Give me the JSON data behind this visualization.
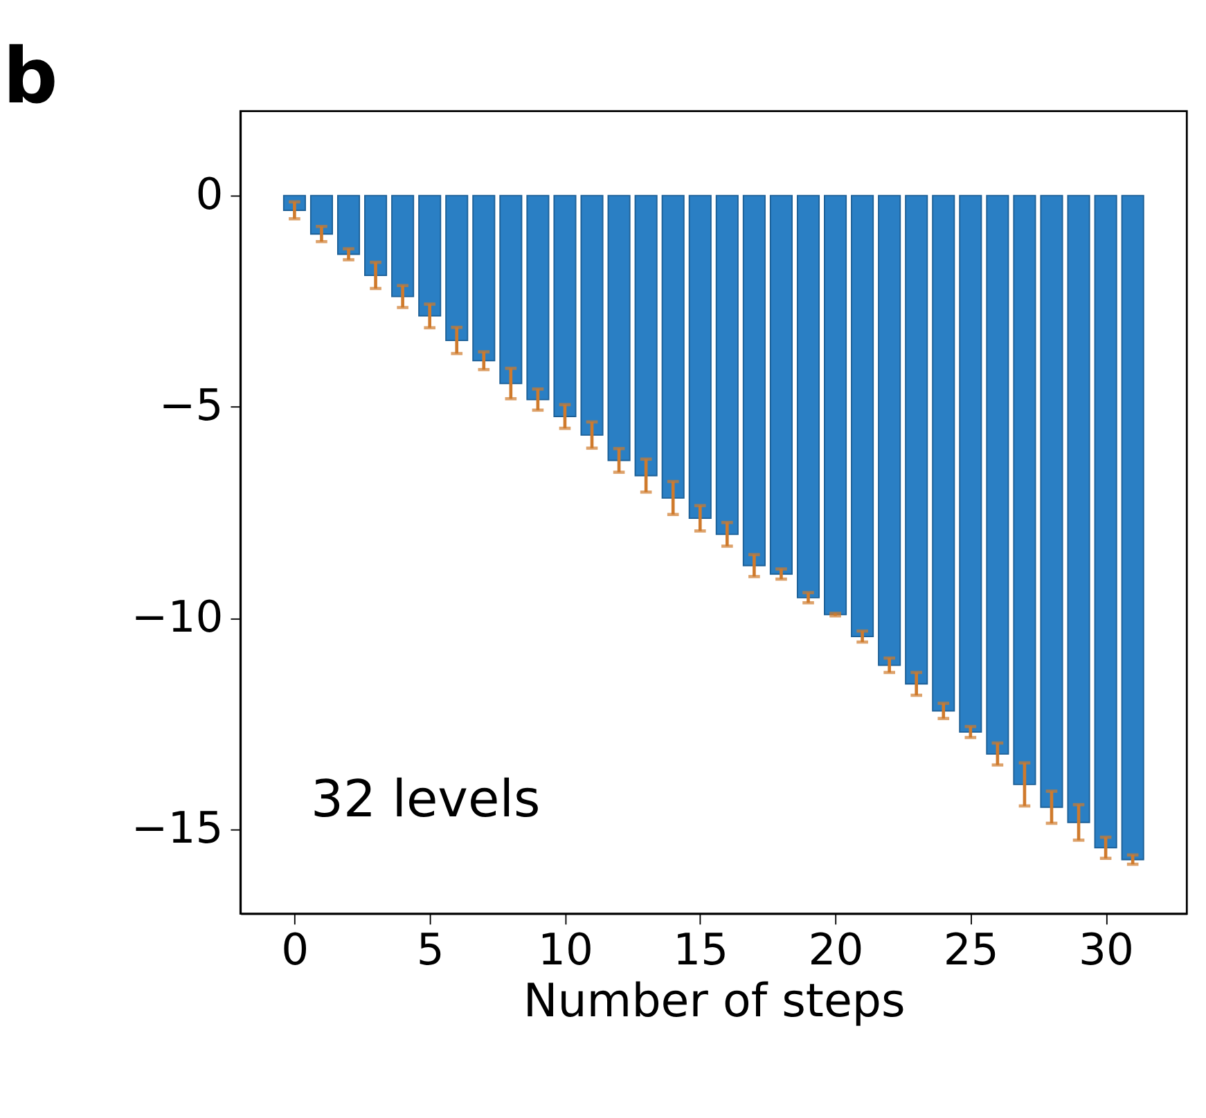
{
  "chart_data": {
    "type": "bar",
    "title": "b",
    "xlabel": "Number of steps",
    "annotations": [
      "32 levels"
    ],
    "x": [
      0,
      1,
      2,
      3,
      4,
      5,
      6,
      7,
      8,
      9,
      10,
      11,
      12,
      13,
      14,
      15,
      16,
      17,
      18,
      19,
      20,
      21,
      22,
      23,
      24,
      25,
      26,
      27,
      28,
      29,
      30,
      31
    ],
    "series": [
      {
        "color": "#2a7fc4",
        "values": [
          -0.35,
          -0.91,
          -1.39,
          -1.89,
          -2.39,
          -2.85,
          -3.43,
          -3.91,
          -4.45,
          -4.83,
          -5.23,
          -5.67,
          -6.27,
          -6.63,
          -7.16,
          -7.64,
          -8.02,
          -8.76,
          -8.96,
          -9.52,
          -9.92,
          -10.44,
          -11.12,
          -11.56,
          -12.2,
          -12.7,
          -13.22,
          -13.94,
          -14.48,
          -14.84,
          -15.44,
          -15.72
        ],
        "errors": [
          0.2,
          0.18,
          0.13,
          0.31,
          0.26,
          0.28,
          0.31,
          0.21,
          0.36,
          0.25,
          0.28,
          0.31,
          0.28,
          0.39,
          0.39,
          0.3,
          0.28,
          0.26,
          0.12,
          0.12,
          0.03,
          0.13,
          0.17,
          0.27,
          0.18,
          0.13,
          0.26,
          0.51,
          0.38,
          0.42,
          0.25,
          0.11
        ]
      }
    ],
    "xlim": [
      -2,
      33
    ],
    "xticks": [
      0,
      5,
      10,
      15,
      20,
      25,
      30
    ],
    "ylim": [
      -17,
      2
    ],
    "yticks": [
      -15,
      -10,
      -5,
      0
    ],
    "grid": false
  }
}
